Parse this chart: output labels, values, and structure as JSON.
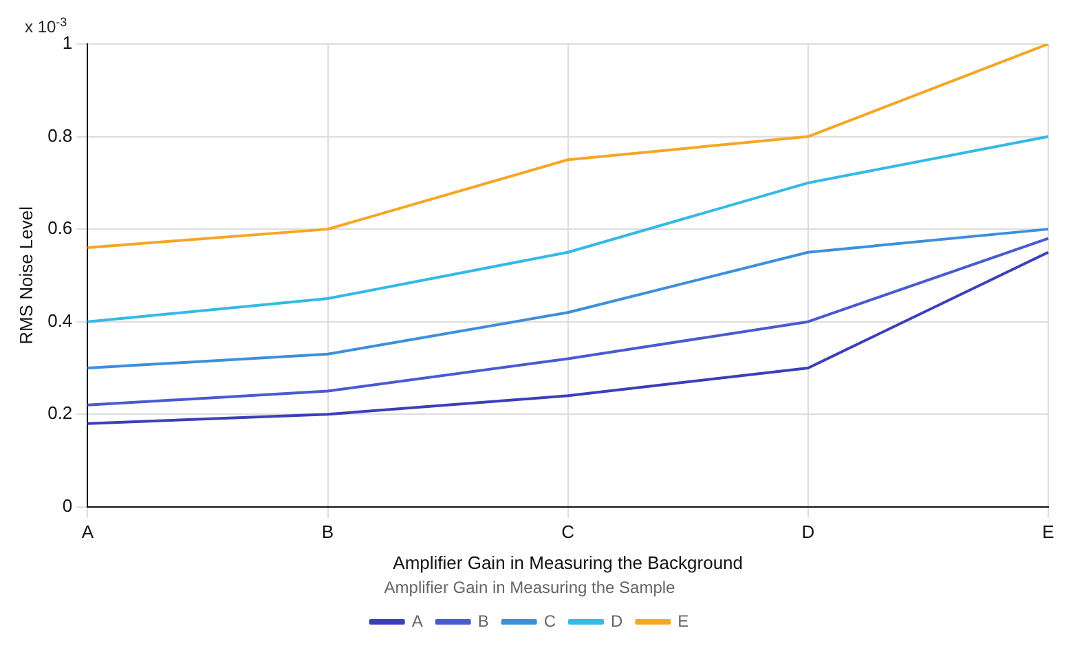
{
  "chart_data": {
    "type": "line",
    "xlabel": "Amplifier Gain in Measuring the Background",
    "ylabel": "RMS Noise Level",
    "legend_title": "Amplifier Gain in Measuring the Sample",
    "annotations": [
      "x 10$^{-3}$"
    ],
    "categories": [
      "A",
      "B",
      "C",
      "D",
      "E"
    ],
    "series": [
      {
        "name": "A",
        "color": "#3b3fb8",
        "values": [
          0.18,
          0.2,
          0.24,
          0.3,
          0.55
        ]
      },
      {
        "name": "B",
        "color": "#4a5ad0",
        "values": [
          0.22,
          0.25,
          0.32,
          0.4,
          0.58
        ]
      },
      {
        "name": "C",
        "color": "#3d8fdb",
        "values": [
          0.3,
          0.33,
          0.42,
          0.55,
          0.6
        ]
      },
      {
        "name": "D",
        "color": "#35b9e6",
        "values": [
          0.4,
          0.45,
          0.55,
          0.7,
          0.8
        ]
      },
      {
        "name": "E",
        "color": "#f5a623",
        "values": [
          0.56,
          0.6,
          0.75,
          0.8,
          1.0
        ]
      }
    ],
    "ylim": [
      0,
      1
    ],
    "yticks": [
      0,
      0.2,
      0.4,
      0.6,
      0.8,
      1
    ],
    "grid": true,
    "legend": "bottom",
    "marker": "none",
    "line_style": "solid"
  }
}
